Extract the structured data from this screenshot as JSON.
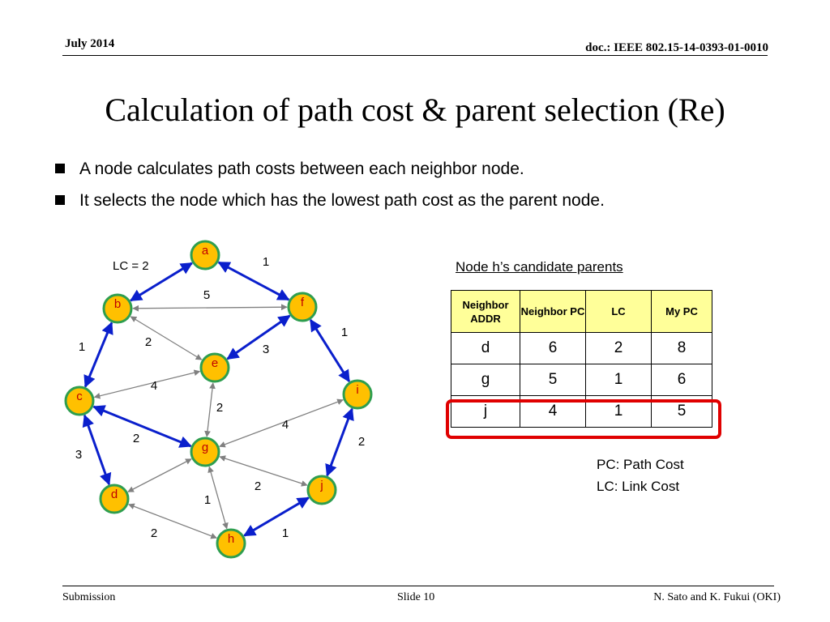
{
  "header": {
    "date": "July 2014",
    "doc": "doc.: IEEE 802.15-14-0393-01-0010"
  },
  "title": "Calculation of path cost & parent selection (Re)",
  "bullets": [
    "A node calculates path costs between each neighbor node.",
    "It selects the node which has the lowest path cost as the parent node."
  ],
  "graph": {
    "lc_label": "LC = 2",
    "nodes": [
      {
        "id": "a",
        "label": "a"
      },
      {
        "id": "b",
        "label": "b"
      },
      {
        "id": "c",
        "label": "c"
      },
      {
        "id": "d",
        "label": "d"
      },
      {
        "id": "e",
        "label": "e"
      },
      {
        "id": "f",
        "label": "f"
      },
      {
        "id": "g",
        "label": "g"
      },
      {
        "id": "h",
        "label": "h"
      },
      {
        "id": "i",
        "label": "i"
      },
      {
        "id": "j",
        "label": "j"
      }
    ],
    "edges": [
      {
        "from": "a",
        "to": "b",
        "type": "blue",
        "weight": ""
      },
      {
        "from": "a",
        "to": "f",
        "type": "blue",
        "weight": "1"
      },
      {
        "from": "b",
        "to": "f",
        "type": "gray",
        "weight": "5"
      },
      {
        "from": "b",
        "to": "c",
        "type": "blue",
        "weight": "1"
      },
      {
        "from": "b",
        "to": "e",
        "type": "gray",
        "weight": "2"
      },
      {
        "from": "f",
        "to": "e",
        "type": "blue",
        "weight": "3"
      },
      {
        "from": "f",
        "to": "i",
        "type": "blue",
        "weight": "1"
      },
      {
        "from": "e",
        "to": "c",
        "type": "gray",
        "weight": "4"
      },
      {
        "from": "e",
        "to": "g",
        "type": "gray",
        "weight": "2"
      },
      {
        "from": "c",
        "to": "g",
        "type": "blue",
        "weight": "2"
      },
      {
        "from": "c",
        "to": "d",
        "type": "blue",
        "weight": "3"
      },
      {
        "from": "i",
        "to": "g",
        "type": "gray",
        "weight": "4"
      },
      {
        "from": "i",
        "to": "j",
        "type": "blue",
        "weight": "2"
      },
      {
        "from": "g",
        "to": "d",
        "type": "gray",
        "weight": ""
      },
      {
        "from": "g",
        "to": "j",
        "type": "gray",
        "weight": "2"
      },
      {
        "from": "g",
        "to": "h",
        "type": "gray",
        "weight": "1"
      },
      {
        "from": "d",
        "to": "h",
        "type": "gray",
        "weight": "2"
      },
      {
        "from": "h",
        "to": "j",
        "type": "blue",
        "weight": "1"
      }
    ]
  },
  "candidates": {
    "title": "Node h’s candidate parents",
    "headers": [
      "Neighbor ADDR",
      "Neighbor PC",
      "LC",
      "My PC"
    ],
    "rows": [
      [
        "d",
        "6",
        "2",
        "8"
      ],
      [
        "g",
        "5",
        "1",
        "6"
      ],
      [
        "j",
        "4",
        "1",
        "5"
      ]
    ]
  },
  "legend": {
    "pc": "PC: Path Cost",
    "lc": "LC: Link Cost"
  },
  "footer": {
    "left": "Submission",
    "center": "Slide 10",
    "right": "N. Sato and K. Fukui (OKI)"
  },
  "colors": {
    "node_fill": "#ffc000",
    "node_stroke": "#2e9e4f",
    "blue_edge": "#0a1fcc",
    "gray_edge": "#808080",
    "node_text": "#c00000",
    "table_header": "#ffff99",
    "highlight": "#e00000"
  }
}
